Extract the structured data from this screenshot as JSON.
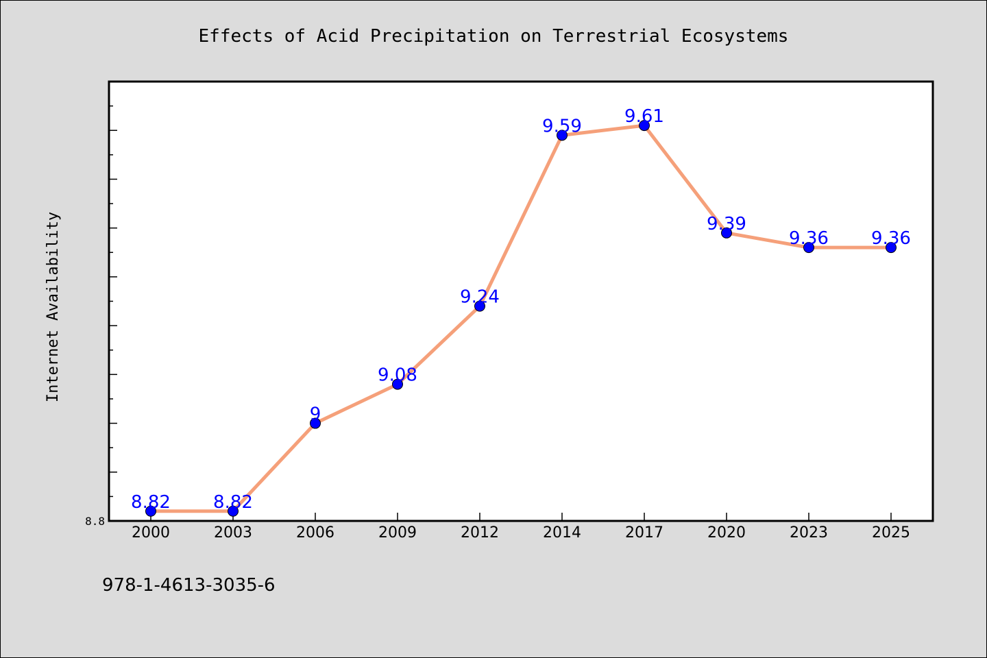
{
  "chart_data": {
    "type": "line",
    "title": "Effects of Acid Precipitation on Terrestrial Ecosystems",
    "xlabel": "",
    "ylabel": "Internet Availability",
    "categories": [
      "2000",
      "2003",
      "2006",
      "2009",
      "2012",
      "2014",
      "2017",
      "2020",
      "2023",
      "2025"
    ],
    "series": [
      {
        "values": [
          8.82,
          8.82,
          9,
          9.08,
          9.24,
          9.59,
          9.61,
          9.39,
          9.36,
          9.36
        ],
        "labels": [
          "8.82",
          "8.82",
          "9",
          "9.08",
          "9.24",
          "9.59",
          "9.61",
          "9.39",
          "9.36",
          "9.36"
        ]
      }
    ],
    "ytick_labels": [
      "8.8"
    ],
    "ylim": [
      8.8,
      9.7
    ],
    "grid": false,
    "legend": "none",
    "colors": {
      "line": "#f5a07a",
      "marker": "#0000ff",
      "data_label": "#0000ff",
      "plot_background": "#ffffff",
      "figure_background": "#dcdcdc"
    }
  },
  "footer": {
    "isbn": "978-1-4613-3035-6"
  }
}
